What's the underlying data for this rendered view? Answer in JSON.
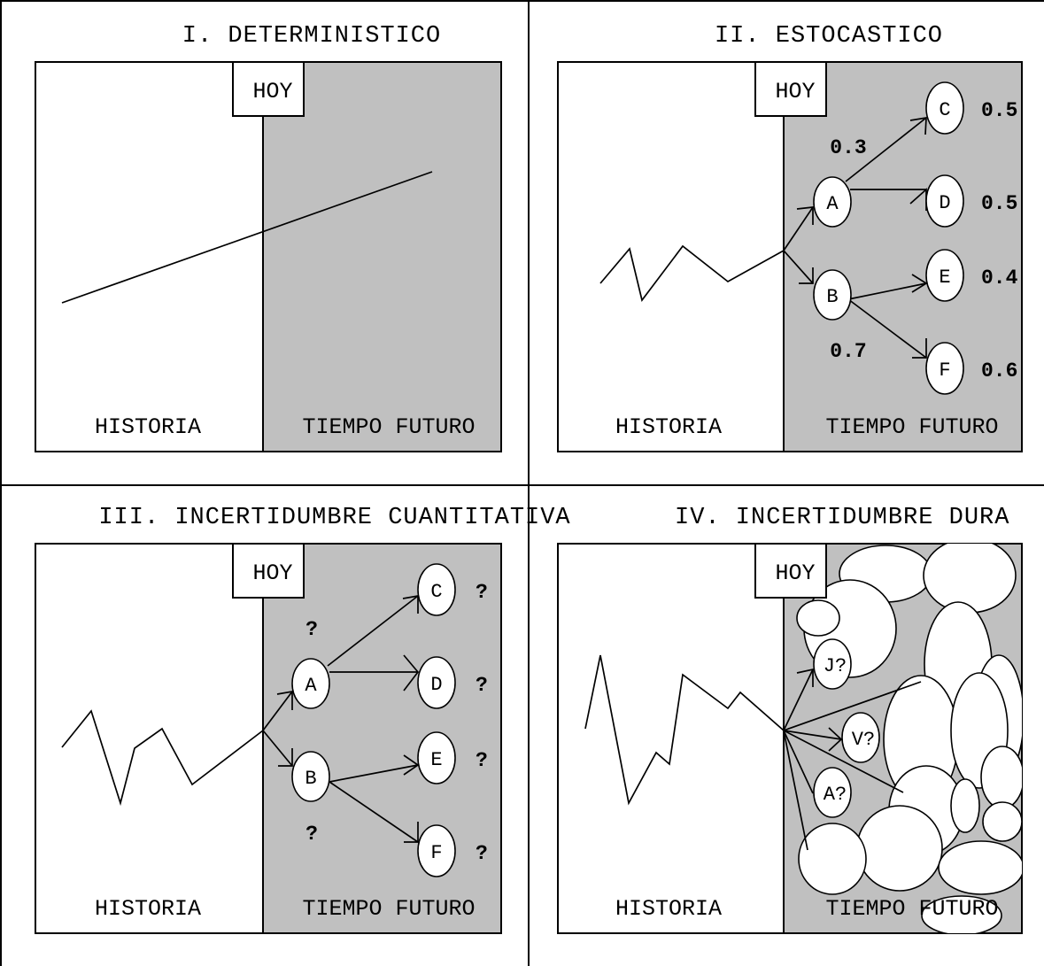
{
  "panels": [
    {
      "id": "deterministic",
      "title": "I. DETERMINISTICO",
      "hoy": "HOY",
      "history_label": "HISTORIA",
      "future_label": "TIEMPO FUTURO"
    },
    {
      "id": "stochastic",
      "title": "II. ESTOCASTICO",
      "hoy": "HOY",
      "history_label": "HISTORIA",
      "future_label": "TIEMPO FUTURO",
      "nodes": [
        "A",
        "B",
        "C",
        "D",
        "E",
        "F"
      ],
      "branch_probabilities": {
        "A": "0.3",
        "B": "0.7"
      },
      "outcome_probabilities": {
        "C": "0.5",
        "D": "0.5",
        "E": "0.4",
        "F": "0.6"
      }
    },
    {
      "id": "quantitative-uncertainty",
      "title": "III. INCERTIDUMBRE CUANTITATIVA",
      "hoy": "HOY",
      "history_label": "HISTORIA",
      "future_label": "TIEMPO FUTURO",
      "nodes": [
        "A",
        "B",
        "C",
        "D",
        "E",
        "F"
      ],
      "branch_probabilities": {
        "A": "?",
        "B": "?"
      },
      "outcome_probabilities": {
        "C": "?",
        "D": "?",
        "E": "?",
        "F": "?"
      }
    },
    {
      "id": "hard-uncertainty",
      "title": "IV. INCERTIDUMBRE DURA",
      "hoy": "HOY",
      "history_label": "HISTORIA",
      "future_label": "TIEMPO FUTURO",
      "nodes": [
        "J?",
        "V?",
        "A?"
      ]
    }
  ],
  "colors": {
    "future_shade": "#c0c0c0",
    "line": "#000000",
    "background": "#ffffff"
  }
}
